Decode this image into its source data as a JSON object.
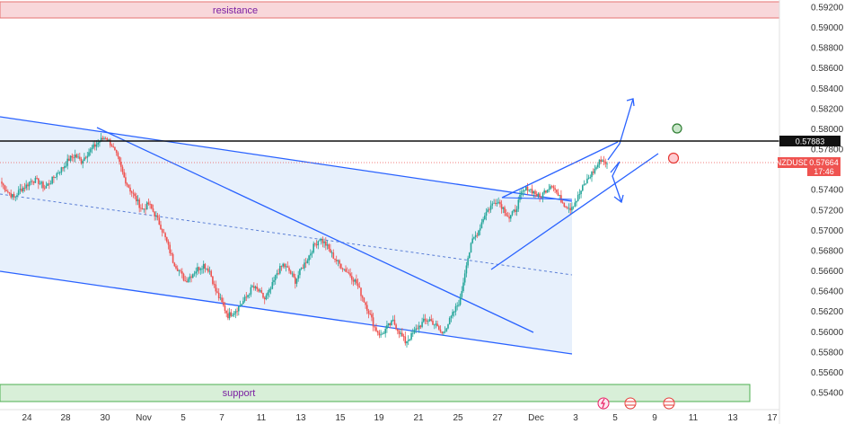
{
  "chart_data": {
    "type": "candlestick",
    "symbol": "NZDUSD",
    "last_price": "0.57664",
    "countdown": "17:46",
    "marked_level": "0.57883",
    "ylim": [
      0.553,
      0.593
    ],
    "y_ticks": [
      "0.59200",
      "0.59000",
      "0.58800",
      "0.58600",
      "0.58400",
      "0.58200",
      "0.58000",
      "0.57800",
      "0.57400",
      "0.57200",
      "0.57000",
      "0.56800",
      "0.56600",
      "0.56400",
      "0.56200",
      "0.56000",
      "0.55800",
      "0.55600",
      "0.55400"
    ],
    "x_ticks": [
      "24",
      "28",
      "30",
      "Nov",
      "5",
      "7",
      "11",
      "13",
      "15",
      "19",
      "21",
      "25",
      "27",
      "Dec",
      "3",
      "5",
      "9",
      "11",
      "13",
      "17"
    ],
    "zones": [
      {
        "label": "resistance",
        "from": 0.591,
        "to": 0.5924,
        "color": "#f8d7da",
        "border": "#e57373"
      },
      {
        "label": "support",
        "from": 0.5532,
        "to": 0.5547,
        "color": "#d8efd8",
        "border": "#4caf50"
      }
    ],
    "colors": {
      "up": "#26a69a",
      "down": "#ef5350",
      "trend": "#2962ff",
      "channel_fill": "#e3edfc"
    },
    "close_path": [
      0.5746,
      0.5738,
      0.5732,
      0.574,
      0.5744,
      0.575,
      0.5748,
      0.5742,
      0.5748,
      0.5756,
      0.5762,
      0.577,
      0.5774,
      0.5768,
      0.5776,
      0.5782,
      0.5788,
      0.5792,
      0.5784,
      0.577,
      0.5752,
      0.574,
      0.573,
      0.572,
      0.5726,
      0.5716,
      0.5704,
      0.5688,
      0.567,
      0.566,
      0.565,
      0.5656,
      0.5662,
      0.5666,
      0.566,
      0.564,
      0.5628,
      0.5616,
      0.562,
      0.5626,
      0.5634,
      0.5644,
      0.564,
      0.5632,
      0.5642,
      0.5658,
      0.5666,
      0.566,
      0.565,
      0.5662,
      0.5672,
      0.5684,
      0.5692,
      0.5686,
      0.5676,
      0.5668,
      0.5662,
      0.5656,
      0.5648,
      0.5634,
      0.562,
      0.5604,
      0.5596,
      0.5604,
      0.561,
      0.56,
      0.559,
      0.5596,
      0.5604,
      0.561,
      0.5612,
      0.5606,
      0.5598,
      0.5608,
      0.562,
      0.5632,
      0.5668,
      0.569,
      0.57,
      0.5716,
      0.5724,
      0.573,
      0.5722,
      0.5712,
      0.572,
      0.5736,
      0.5742,
      0.5738,
      0.5732,
      0.574,
      0.5746,
      0.5734,
      0.5726,
      0.5722,
      0.573,
      0.5742,
      0.5752,
      0.576,
      0.577,
      0.5766
    ]
  },
  "annotations": {
    "resistance_label": "resistance",
    "support_label": "support"
  },
  "price_tags": {
    "level_value": "0.57883",
    "symbol": "NZDUSD",
    "last_value": "0.57664",
    "countdown": "17:46"
  }
}
